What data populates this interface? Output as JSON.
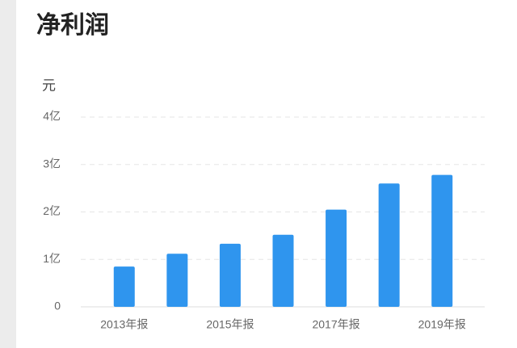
{
  "chart_data": {
    "type": "bar",
    "title": "净利润",
    "y_label": "元",
    "categories": [
      "2013年报",
      null,
      "2015年报",
      null,
      "2017年报",
      null,
      "2019年报"
    ],
    "values": [
      0.85,
      1.12,
      1.33,
      1.52,
      2.05,
      2.6,
      2.78
    ],
    "color": "#2f95ee",
    "ylim": [
      0,
      4
    ],
    "yticks": [
      0,
      {
        "value": 1,
        "label": "1亿"
      },
      {
        "value": 2,
        "label": "2亿"
      },
      {
        "value": 3,
        "label": "3亿"
      },
      {
        "value": 4,
        "label": "4亿"
      }
    ],
    "grid": true
  }
}
